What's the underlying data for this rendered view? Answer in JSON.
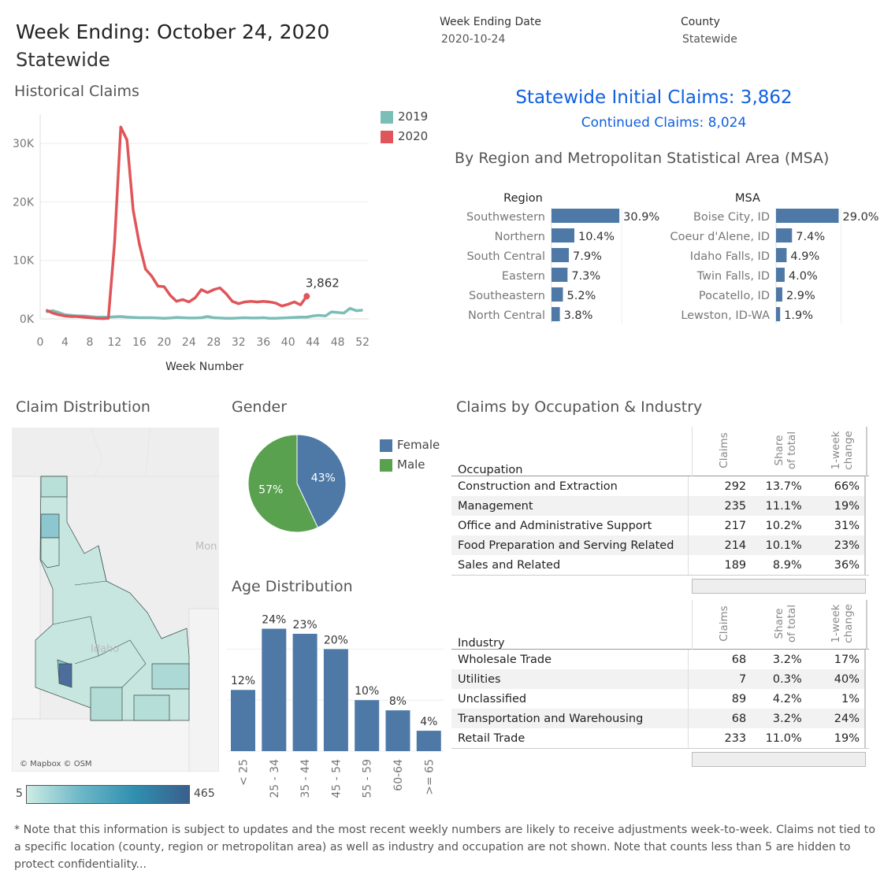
{
  "header": {
    "title": "Week Ending: October 24, 2020",
    "subtitle": "Statewide",
    "filter_week_label": "Week Ending Date",
    "filter_week_value": "2020-10-24",
    "filter_county_label": "County",
    "filter_county_value": "Statewide"
  },
  "summary": {
    "initial_claims": "Statewide Initial Claims: 3,862",
    "continued_claims": "Continued Claims: 8,024"
  },
  "sections": {
    "historical": "Historical Claims",
    "by_region": "By Region and Metropolitan Statistical Area (MSA)",
    "claim_distribution": "Claim Distribution",
    "gender": "Gender",
    "age": "Age Distribution",
    "occupation_industry": "Claims by Occupation & Industry"
  },
  "colors": {
    "series_2019": "#7bbdb7",
    "series_2020": "#e05559",
    "bar_blue": "#4e79a7",
    "female": "#4e79a7",
    "male": "#59a14f",
    "title_blue": "#1060e0"
  },
  "chart_data": [
    {
      "type": "line",
      "title": "Historical Claims",
      "xlabel": "Week Number",
      "ylabel": "",
      "xlim": [
        0,
        53
      ],
      "ylim": [
        0,
        35000
      ],
      "x_ticks": [
        "0",
        "4",
        "8",
        "12",
        "16",
        "20",
        "24",
        "28",
        "32",
        "36",
        "40",
        "44",
        "48",
        "52"
      ],
      "y_ticks": [
        "0K",
        "10K",
        "20K",
        "30K"
      ],
      "grid": true,
      "legend_position": "top-right",
      "annotation": "3,862",
      "series": [
        {
          "name": "2019",
          "x": [
            1,
            2,
            3,
            4,
            5,
            6,
            7,
            8,
            9,
            10,
            11,
            12,
            13,
            14,
            15,
            16,
            17,
            18,
            19,
            20,
            21,
            22,
            23,
            24,
            25,
            26,
            27,
            28,
            29,
            30,
            31,
            32,
            33,
            34,
            35,
            36,
            37,
            38,
            39,
            40,
            41,
            42,
            43,
            44,
            45,
            46,
            47,
            48,
            49,
            50,
            51,
            52
          ],
          "values": [
            1200,
            1400,
            1100,
            700,
            600,
            500,
            500,
            400,
            300,
            300,
            300,
            350,
            400,
            300,
            250,
            200,
            200,
            200,
            150,
            100,
            150,
            250,
            200,
            150,
            150,
            200,
            400,
            200,
            150,
            100,
            100,
            150,
            200,
            150,
            150,
            200,
            100,
            100,
            150,
            200,
            250,
            300,
            300,
            500,
            600,
            500,
            1200,
            1100,
            1000,
            1800,
            1400,
            1500
          ]
        },
        {
          "name": "2020",
          "x": [
            1,
            2,
            3,
            4,
            5,
            6,
            7,
            8,
            9,
            10,
            11,
            12,
            13,
            14,
            15,
            16,
            17,
            18,
            19,
            20,
            21,
            22,
            23,
            24,
            25,
            26,
            27,
            28,
            29,
            30,
            31,
            32,
            33,
            34,
            35,
            36,
            37,
            38,
            39,
            40,
            41,
            42,
            43
          ],
          "values": [
            1500,
            1000,
            700,
            500,
            400,
            400,
            300,
            200,
            100,
            50,
            100,
            13000,
            32800,
            30600,
            18600,
            12800,
            8500,
            7300,
            5600,
            5500,
            4000,
            3000,
            3300,
            2900,
            3600,
            5000,
            4500,
            5000,
            5300,
            4300,
            3000,
            2600,
            2900,
            3000,
            2900,
            3000,
            2900,
            2700,
            2200,
            2500,
            2900,
            2400,
            3862
          ]
        }
      ]
    },
    {
      "type": "bar",
      "title": "Region",
      "categories": [
        "Southwestern",
        "Northern",
        "South Central",
        "Eastern",
        "Southeastern",
        "North Central"
      ],
      "values": [
        30.9,
        10.4,
        7.9,
        7.3,
        5.2,
        3.8
      ],
      "labels": [
        "30.9%",
        "10.4%",
        "7.9%",
        "7.3%",
        "5.2%",
        "3.8%"
      ],
      "xlim": [
        0,
        33
      ]
    },
    {
      "type": "bar",
      "title": "MSA",
      "categories": [
        "Boise City, ID",
        "Coeur d'Alene, ID",
        "Idaho Falls, ID",
        "Twin Falls, ID",
        "Pocatello, ID",
        "Lewston, ID-WA"
      ],
      "values": [
        29.0,
        7.4,
        4.9,
        4.0,
        2.9,
        1.9
      ],
      "labels": [
        "29.0%",
        "7.4%",
        "4.9%",
        "4.0%",
        "2.9%",
        "1.9%"
      ],
      "xlim": [
        0,
        31
      ]
    },
    {
      "type": "pie",
      "title": "Gender",
      "categories": [
        "Female",
        "Male"
      ],
      "values": [
        43,
        57
      ],
      "labels": [
        "43%",
        "57%"
      ],
      "legend_position": "right"
    },
    {
      "type": "bar",
      "title": "Age Distribution",
      "categories": [
        "< 25",
        "25 - 34",
        "35 - 44",
        "45 - 54",
        "55 - 59",
        "60-64",
        ">= 65"
      ],
      "values": [
        12,
        24,
        23,
        20,
        10,
        8,
        4
      ],
      "labels": [
        "12%",
        "24%",
        "23%",
        "20%",
        "10%",
        "8%",
        "4%"
      ],
      "ylim": [
        0,
        25
      ]
    }
  ],
  "map": {
    "attribution": "© Mapbox © OSM",
    "place_labels": [
      "Idaho",
      "Mon"
    ],
    "legend_min": "5",
    "legend_max": "465"
  },
  "occupation_table": {
    "header_label": "Occupation",
    "columns": [
      "Claims",
      "Share of total",
      "1-week change"
    ],
    "rows": [
      {
        "name": "Construction and Extraction",
        "claims": "292",
        "share": "13.7%",
        "change": "66%"
      },
      {
        "name": "Management",
        "claims": "235",
        "share": "11.1%",
        "change": "19%"
      },
      {
        "name": "Office and Administrative Support",
        "claims": "217",
        "share": "10.2%",
        "change": "31%"
      },
      {
        "name": "Food Preparation and Serving Related",
        "claims": "214",
        "share": "10.1%",
        "change": "23%"
      },
      {
        "name": "Sales and Related",
        "claims": "189",
        "share": "8.9%",
        "change": "36%"
      }
    ]
  },
  "industry_table": {
    "header_label": "Industry",
    "columns": [
      "Claims",
      "Share of total",
      "1-week change"
    ],
    "rows": [
      {
        "name": "Wholesale Trade",
        "claims": "68",
        "share": "3.2%",
        "change": "17%"
      },
      {
        "name": "Utilities",
        "claims": "7",
        "share": "0.3%",
        "change": "40%"
      },
      {
        "name": "Unclassified",
        "claims": "89",
        "share": "4.2%",
        "change": "1%"
      },
      {
        "name": "Transportation and Warehousing",
        "claims": "68",
        "share": "3.2%",
        "change": "24%"
      },
      {
        "name": "Retail Trade",
        "claims": "233",
        "share": "11.0%",
        "change": "19%"
      }
    ]
  },
  "footnote": "* Note that this information is subject to updates and the most recent weekly numbers are likely to receive adjustments week-to-week. Claims not tied to a specific location (county, region or metropolitan area) as well as industry and occupation are not shown. Note that counts less than 5 are hidden to protect confidentiality..."
}
